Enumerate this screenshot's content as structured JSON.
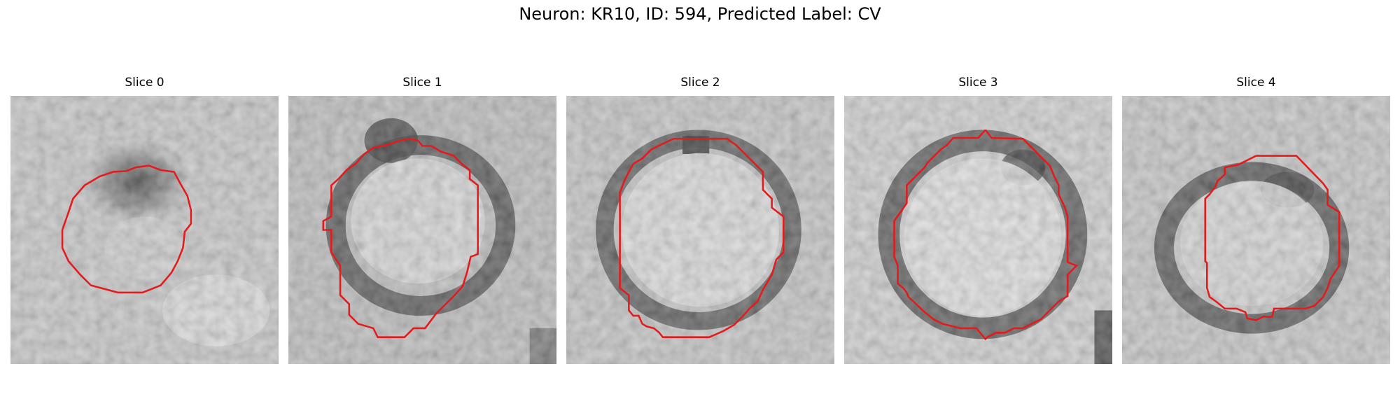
{
  "figure": {
    "title": "Neuron: KR10, ID: 594, Predicted Label: CV"
  },
  "panels": [
    {
      "title": "Slice 0"
    },
    {
      "title": "Slice 1"
    },
    {
      "title": "Slice 2"
    },
    {
      "title": "Slice 3"
    },
    {
      "title": "Slice 4"
    }
  ],
  "colors": {
    "contour": "#e41a1c",
    "background": "#ffffff"
  }
}
